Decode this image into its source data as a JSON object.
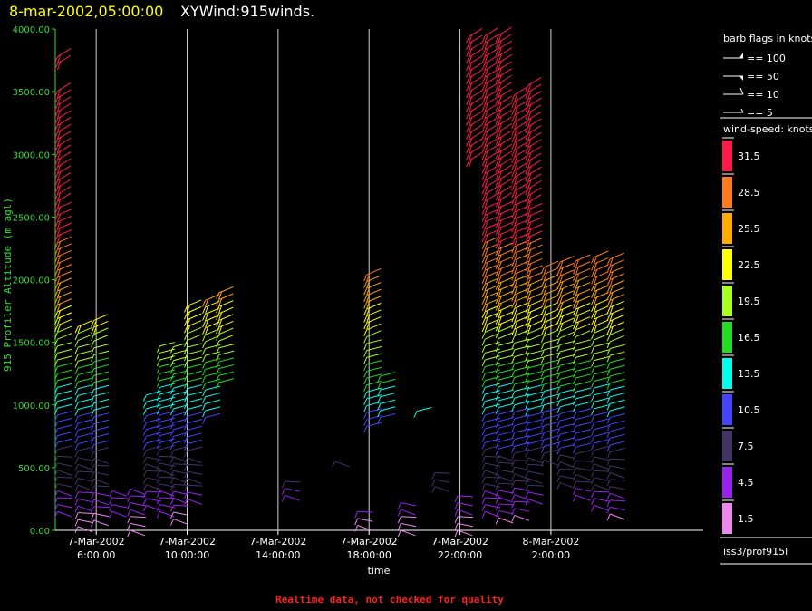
{
  "title": {
    "date": "8-mar-2002,05:00:00",
    "main": "XYWind:915winds."
  },
  "footer": "Realtime data, not checked for quality",
  "chart_data": {
    "type": "wind-barb",
    "ylabel": "915 Profiler Altitude (m agl)",
    "xlabel": "time",
    "ylim": [
      0,
      4000
    ],
    "yticks": [
      "0.00",
      "500.00",
      "1000.00",
      "1500.00",
      "2000.00",
      "2500.00",
      "3000.00",
      "3500.00",
      "4000.00"
    ],
    "ytick_values": [
      0,
      500,
      1000,
      1500,
      2000,
      2500,
      3000,
      3500,
      4000
    ],
    "xlim_hours": [
      4.2,
      32.7
    ],
    "xticks": [
      {
        "hour": 6,
        "line1": "7-Mar-2002",
        "line2": "6:00:00"
      },
      {
        "hour": 10,
        "line1": "7-Mar-2002",
        "line2": "10:00:00"
      },
      {
        "hour": 14,
        "line1": "7-Mar-2002",
        "line2": "14:00:00"
      },
      {
        "hour": 18,
        "line1": "7-Mar-2002",
        "line2": "18:00:00"
      },
      {
        "hour": 22,
        "line1": "7-Mar-2002",
        "line2": "22:00:00"
      },
      {
        "hour": 26,
        "line1": "8-Mar-2002",
        "line2": "2:00:00"
      }
    ],
    "grid": "vertical lines at each x tick",
    "color_scale": {
      "title": "wind-speed: knots",
      "levels": [
        {
          "label": "31.5",
          "color": "#ff1a4a"
        },
        {
          "label": "28.5",
          "color": "#ff7a1a"
        },
        {
          "label": "25.5",
          "color": "#ffaa00"
        },
        {
          "label": "22.5",
          "color": "#ffff00"
        },
        {
          "label": "19.5",
          "color": "#aaff22"
        },
        {
          "label": "16.5",
          "color": "#22dd22"
        },
        {
          "label": "13.5",
          "color": "#00ffee"
        },
        {
          "label": "10.5",
          "color": "#4444ff"
        },
        {
          "label": "7.5",
          "color": "#443366"
        },
        {
          "label": "4.5",
          "color": "#9922ee"
        },
        {
          "label": "1.5",
          "color": "#ee88ee"
        }
      ]
    },
    "barb_legend": {
      "title": "barb flags in knots",
      "items": [
        "== 100",
        "== 50",
        "== 10",
        "== 5"
      ]
    },
    "profiles": [
      {
        "hour": 4.3,
        "bottom": 150,
        "top": 3800,
        "gaps": [
          [
            3550,
            3700
          ]
        ]
      },
      {
        "hour": 5.2,
        "bottom": 30,
        "top": 1650
      },
      {
        "hour": 5.9,
        "bottom": 80,
        "top": 1680
      },
      {
        "hour": 6.7,
        "bottom": 150,
        "top": 340
      },
      {
        "hour": 7.5,
        "bottom": 0,
        "top": 380
      },
      {
        "hour": 8.2,
        "bottom": 200,
        "top": 1080
      },
      {
        "hour": 8.8,
        "bottom": 150,
        "top": 1480
      },
      {
        "hour": 9.4,
        "bottom": 90,
        "top": 1500
      },
      {
        "hour": 10.0,
        "bottom": 250,
        "top": 1830
      },
      {
        "hour": 10.8,
        "bottom": 900,
        "top": 1860
      },
      {
        "hour": 11.4,
        "bottom": 1180,
        "top": 1900
      },
      {
        "hour": 14.3,
        "bottom": 280,
        "top": 430
      },
      {
        "hour": 16.5,
        "bottom": 550,
        "top": 580
      },
      {
        "hour": 17.5,
        "bottom": 40,
        "top": 200
      },
      {
        "hour": 17.9,
        "bottom": 830,
        "top": 2050
      },
      {
        "hour": 18.5,
        "bottom": 900,
        "top": 1250
      },
      {
        "hour": 19.4,
        "bottom": 0,
        "top": 250
      },
      {
        "hour": 20.1,
        "bottom": 950,
        "top": 990
      },
      {
        "hour": 20.9,
        "bottom": 350,
        "top": 460
      },
      {
        "hour": 21.9,
        "bottom": 0,
        "top": 310
      },
      {
        "hour": 22.4,
        "bottom": 2950,
        "top": 3960
      },
      {
        "hour": 23.1,
        "bottom": 150,
        "top": 3960
      },
      {
        "hour": 23.7,
        "bottom": 100,
        "top": 3960
      },
      {
        "hour": 24.4,
        "bottom": 120,
        "top": 3500
      },
      {
        "hour": 25.0,
        "bottom": 250,
        "top": 3550
      },
      {
        "hour": 25.7,
        "bottom": 560,
        "top": 2150
      },
      {
        "hour": 26.4,
        "bottom": 380,
        "top": 2160
      },
      {
        "hour": 27.1,
        "bottom": 280,
        "top": 2160
      },
      {
        "hour": 27.9,
        "bottom": 200,
        "top": 2200
      },
      {
        "hour": 28.6,
        "bottom": 130,
        "top": 2200
      }
    ]
  },
  "station_label": "iss3/prof915l"
}
